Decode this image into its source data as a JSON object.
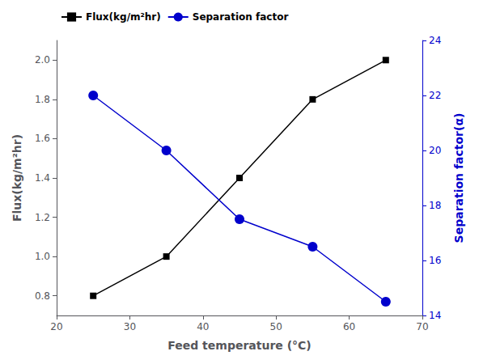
{
  "chart_data": {
    "type": "line",
    "xlabel": "Feed temperature (°C)",
    "ylabel": "Flux(kg/m²hr)",
    "y2label": "Separation factor(α)",
    "x": [
      25,
      35,
      45,
      55,
      65
    ],
    "xlim": [
      20,
      70
    ],
    "xticks": [
      20,
      30,
      40,
      50,
      60,
      70
    ],
    "ylim": [
      0.7,
      2.1
    ],
    "yticks": [
      0.8,
      {
        "value": 1.0,
        "label": "1.0"
      },
      1.2,
      1.4,
      1.6,
      1.8,
      {
        "value": 2.0,
        "label": "2.0"
      }
    ],
    "y2lim": [
      14,
      24
    ],
    "y2ticks": [
      14,
      16,
      18,
      20,
      22,
      24
    ],
    "series": [
      {
        "name": "Flux(kg/m²hr)",
        "color": "black",
        "marker": "square",
        "line_style": "solid",
        "values": [
          0.8,
          1.0,
          1.4,
          1.8,
          2.0
        ]
      },
      {
        "name": "Separation factor",
        "color": "#0000cc",
        "marker": "circle",
        "line_style": "solid",
        "axis": "y2",
        "values": [
          22.0,
          20.0,
          17.5,
          16.5,
          14.5
        ]
      }
    ],
    "legend": "upper left",
    "grid": false
  }
}
